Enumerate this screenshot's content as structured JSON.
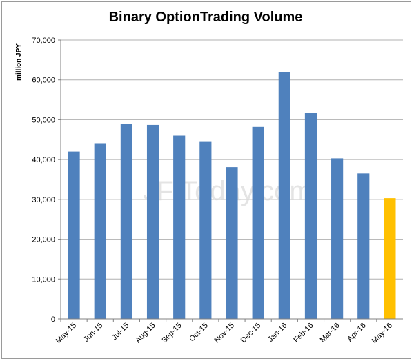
{
  "chart_data": {
    "type": "bar",
    "title": "Binary OptionTrading Volume",
    "ylabel": "million JPY",
    "xlabel": "",
    "categories": [
      "May-15",
      "Jun-15",
      "Jul-15",
      "Aug-15",
      "Sep-15",
      "Oct-15",
      "Nov-15",
      "Dec-15",
      "Jan-16",
      "Feb-16",
      "Mar-16",
      "Apr-16",
      "May-16"
    ],
    "series": [
      {
        "values": [
          42000,
          44100,
          48900,
          48700,
          46000,
          44600,
          38100,
          48200,
          62000,
          51700,
          40300,
          36500,
          30300
        ]
      }
    ],
    "ylim": [
      0,
      70000
    ],
    "yticks": [
      0,
      10000,
      20000,
      30000,
      40000,
      50000,
      60000,
      70000
    ],
    "ytick_labels": [
      "0",
      "10,000",
      "20,000",
      "30,000",
      "40,000",
      "50,000",
      "60,000",
      "70,000"
    ],
    "grid": true,
    "colors": {
      "bar": "#4f81bd",
      "highlight": "#ffc000",
      "grid": "#b0b0b0"
    },
    "highlight_index": 12,
    "watermark": "JF Today.com"
  }
}
